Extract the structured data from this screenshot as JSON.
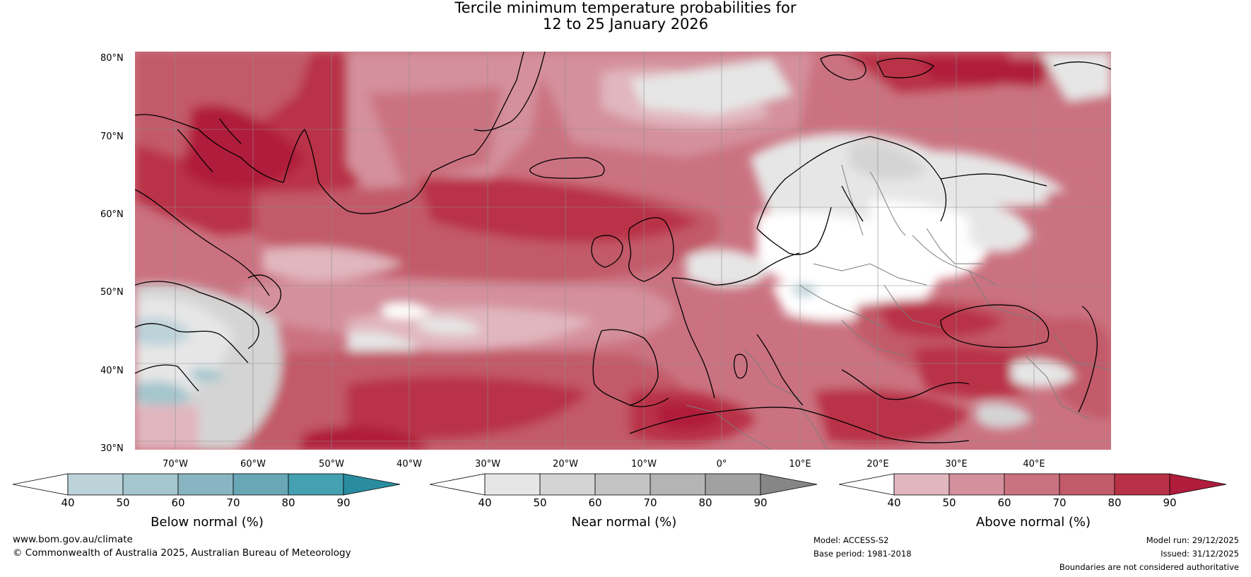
{
  "title": {
    "line1": "Tercile minimum temperature probabilities for",
    "line2": "12 to 25 January 2026"
  },
  "map": {
    "lat_labels": [
      "80°N",
      "70°N",
      "60°N",
      "50°N",
      "40°N",
      "30°N"
    ],
    "lon_labels": [
      "70°W",
      "60°W",
      "50°W",
      "40°W",
      "30°W",
      "20°W",
      "10°W",
      "0°",
      "10°E",
      "20°E",
      "30°E",
      "40°E"
    ],
    "lat_range": [
      30,
      80
    ],
    "lon_range": [
      -80,
      45
    ]
  },
  "legends": [
    {
      "id": "below",
      "title": "Below normal (%)",
      "ticks": [
        "40",
        "50",
        "60",
        "70",
        "80",
        "90"
      ],
      "colors": [
        "#ffffff",
        "#bcd3da",
        "#a4c6cd",
        "#88b5c1",
        "#69a7b7",
        "#45a0b1",
        "#2a8c9f"
      ]
    },
    {
      "id": "near",
      "title": "Near normal (%)",
      "ticks": [
        "40",
        "50",
        "60",
        "70",
        "80",
        "90"
      ],
      "colors": [
        "#ffffff",
        "#e6e6e6",
        "#d4d4d4",
        "#c4c4c4",
        "#b3b4b3",
        "#a2a1a2",
        "#868686"
      ]
    },
    {
      "id": "above",
      "title": "Above normal (%)",
      "ticks": [
        "40",
        "50",
        "60",
        "70",
        "80",
        "90"
      ],
      "colors": [
        "#ffffff",
        "#e1b6be",
        "#d4909c",
        "#cb7280",
        "#c25a69",
        "#b93146",
        "#b01c3b"
      ]
    }
  ],
  "footer": {
    "website": "www.bom.gov.au/climate",
    "copyright": "© Commonwealth of Australia 2025, Australian Bureau of Meteorology",
    "model": "Model: ACCESS-S2",
    "base_period": "Base period: 1981-2018",
    "model_run": "Model run: 29/12/2025",
    "issued": "Issued: 31/12/2025",
    "disclaimer": "Boundaries are not considered authoritative"
  }
}
